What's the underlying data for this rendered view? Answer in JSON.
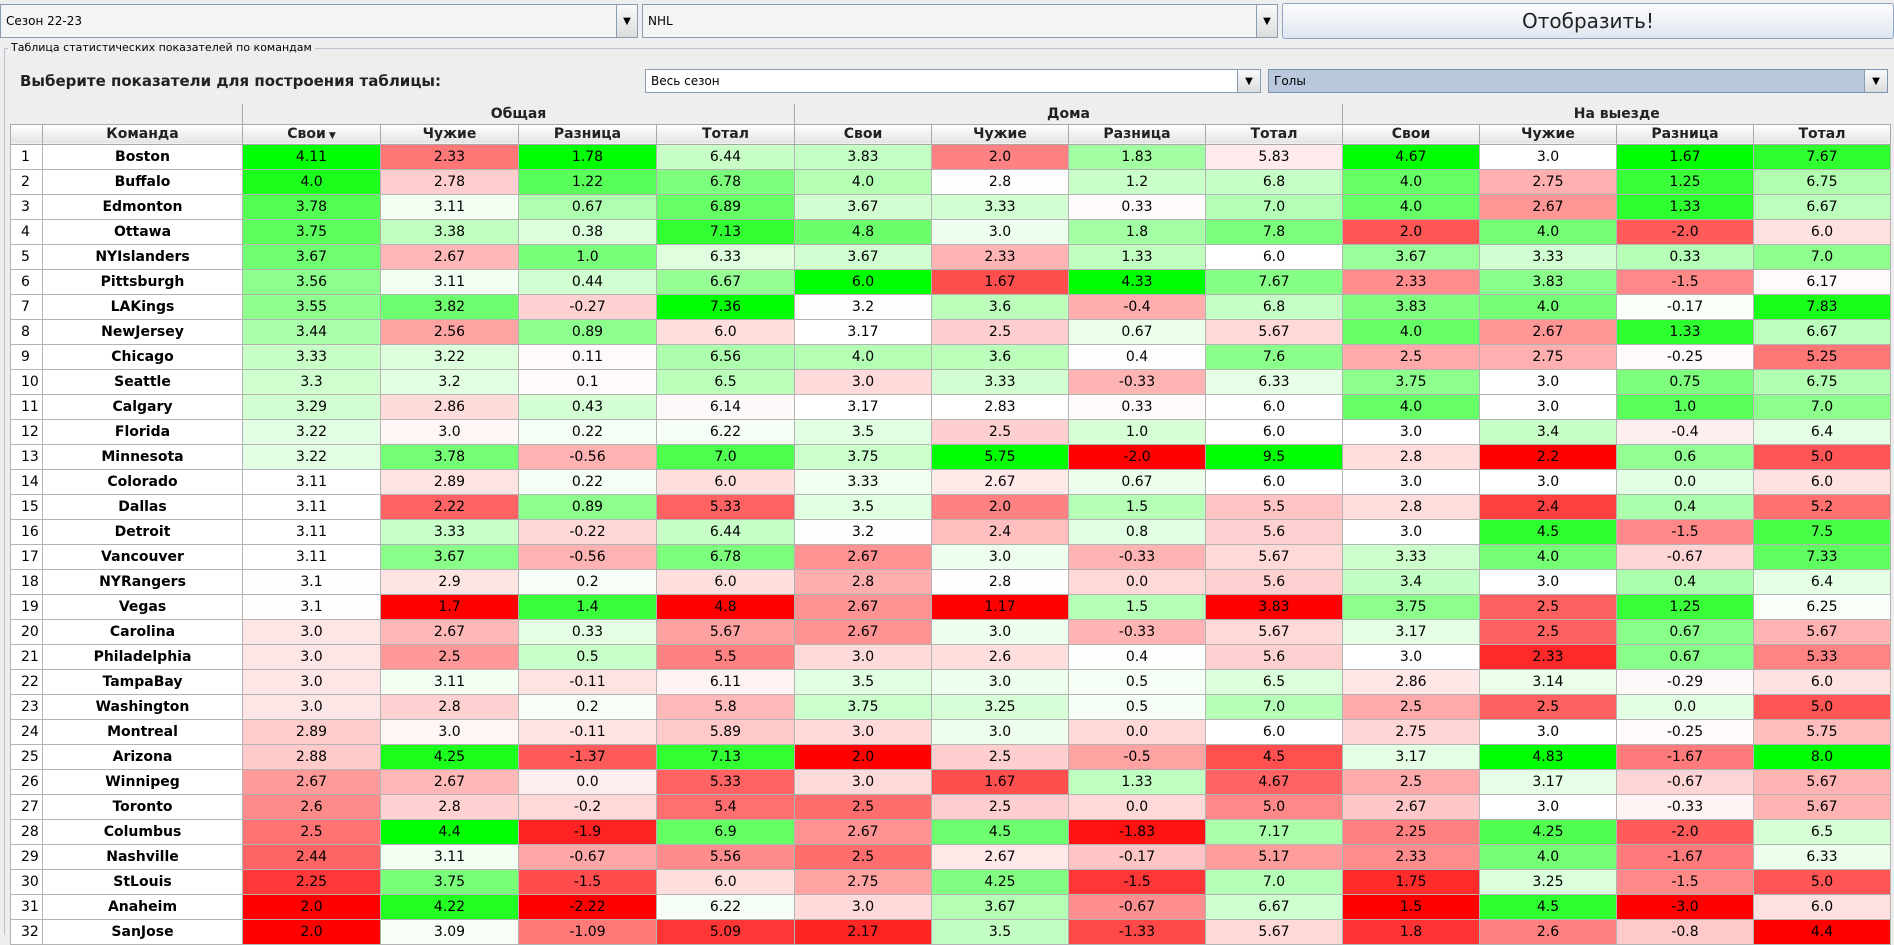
{
  "toolbar": {
    "season": "Сезон 22-23",
    "league": "NHL",
    "show_label": "Отобразить!"
  },
  "panel": {
    "title": "Таблица статистических показателей по командам",
    "choose_label": "Выберите показатели для построения таблицы:",
    "period": "Весь сезон",
    "metric": "Голы"
  },
  "groups": [
    "Общая",
    "Дома",
    "На выезде"
  ],
  "columns": [
    "Команда",
    "Свои",
    "Чужие",
    "Разница",
    "Тотал",
    "Свои",
    "Чужие",
    "Разница",
    "Тотал",
    "Свои",
    "Чужие",
    "Разница",
    "Тотал"
  ],
  "sorted_column": 1,
  "rows": [
    {
      "n": "1",
      "team": "Boston",
      "v": [
        "4.11",
        "2.33",
        "1.78",
        "6.44",
        "3.83",
        "2.0",
        "1.83",
        "5.83",
        "4.67",
        "3.0",
        "1.67",
        "7.67"
      ]
    },
    {
      "n": "2",
      "team": "Buffalo",
      "v": [
        "4.0",
        "2.78",
        "1.22",
        "6.78",
        "4.0",
        "2.8",
        "1.2",
        "6.8",
        "4.0",
        "2.75",
        "1.25",
        "6.75"
      ]
    },
    {
      "n": "3",
      "team": "Edmonton",
      "v": [
        "3.78",
        "3.11",
        "0.67",
        "6.89",
        "3.67",
        "3.33",
        "0.33",
        "7.0",
        "4.0",
        "2.67",
        "1.33",
        "6.67"
      ]
    },
    {
      "n": "4",
      "team": "Ottawa",
      "v": [
        "3.75",
        "3.38",
        "0.38",
        "7.13",
        "4.8",
        "3.0",
        "1.8",
        "7.8",
        "2.0",
        "4.0",
        "-2.0",
        "6.0"
      ]
    },
    {
      "n": "5",
      "team": "NYIslanders",
      "v": [
        "3.67",
        "2.67",
        "1.0",
        "6.33",
        "3.67",
        "2.33",
        "1.33",
        "6.0",
        "3.67",
        "3.33",
        "0.33",
        "7.0"
      ]
    },
    {
      "n": "6",
      "team": "Pittsburgh",
      "v": [
        "3.56",
        "3.11",
        "0.44",
        "6.67",
        "6.0",
        "1.67",
        "4.33",
        "7.67",
        "2.33",
        "3.83",
        "-1.5",
        "6.17"
      ]
    },
    {
      "n": "7",
      "team": "LAKings",
      "v": [
        "3.55",
        "3.82",
        "-0.27",
        "7.36",
        "3.2",
        "3.6",
        "-0.4",
        "6.8",
        "3.83",
        "4.0",
        "-0.17",
        "7.83"
      ]
    },
    {
      "n": "8",
      "team": "NewJersey",
      "v": [
        "3.44",
        "2.56",
        "0.89",
        "6.0",
        "3.17",
        "2.5",
        "0.67",
        "5.67",
        "4.0",
        "2.67",
        "1.33",
        "6.67"
      ]
    },
    {
      "n": "9",
      "team": "Chicago",
      "v": [
        "3.33",
        "3.22",
        "0.11",
        "6.56",
        "4.0",
        "3.6",
        "0.4",
        "7.6",
        "2.5",
        "2.75",
        "-0.25",
        "5.25"
      ]
    },
    {
      "n": "10",
      "team": "Seattle",
      "v": [
        "3.3",
        "3.2",
        "0.1",
        "6.5",
        "3.0",
        "3.33",
        "-0.33",
        "6.33",
        "3.75",
        "3.0",
        "0.75",
        "6.75"
      ]
    },
    {
      "n": "11",
      "team": "Calgary",
      "v": [
        "3.29",
        "2.86",
        "0.43",
        "6.14",
        "3.17",
        "2.83",
        "0.33",
        "6.0",
        "4.0",
        "3.0",
        "1.0",
        "7.0"
      ]
    },
    {
      "n": "12",
      "team": "Florida",
      "v": [
        "3.22",
        "3.0",
        "0.22",
        "6.22",
        "3.5",
        "2.5",
        "1.0",
        "6.0",
        "3.0",
        "3.4",
        "-0.4",
        "6.4"
      ]
    },
    {
      "n": "13",
      "team": "Minnesota",
      "v": [
        "3.22",
        "3.78",
        "-0.56",
        "7.0",
        "3.75",
        "5.75",
        "-2.0",
        "9.5",
        "2.8",
        "2.2",
        "0.6",
        "5.0"
      ]
    },
    {
      "n": "14",
      "team": "Colorado",
      "v": [
        "3.11",
        "2.89",
        "0.22",
        "6.0",
        "3.33",
        "2.67",
        "0.67",
        "6.0",
        "3.0",
        "3.0",
        "0.0",
        "6.0"
      ]
    },
    {
      "n": "15",
      "team": "Dallas",
      "v": [
        "3.11",
        "2.22",
        "0.89",
        "5.33",
        "3.5",
        "2.0",
        "1.5",
        "5.5",
        "2.8",
        "2.4",
        "0.4",
        "5.2"
      ]
    },
    {
      "n": "16",
      "team": "Detroit",
      "v": [
        "3.11",
        "3.33",
        "-0.22",
        "6.44",
        "3.2",
        "2.4",
        "0.8",
        "5.6",
        "3.0",
        "4.5",
        "-1.5",
        "7.5"
      ]
    },
    {
      "n": "17",
      "team": "Vancouver",
      "v": [
        "3.11",
        "3.67",
        "-0.56",
        "6.78",
        "2.67",
        "3.0",
        "-0.33",
        "5.67",
        "3.33",
        "4.0",
        "-0.67",
        "7.33"
      ]
    },
    {
      "n": "18",
      "team": "NYRangers",
      "v": [
        "3.1",
        "2.9",
        "0.2",
        "6.0",
        "2.8",
        "2.8",
        "0.0",
        "5.6",
        "3.4",
        "3.0",
        "0.4",
        "6.4"
      ]
    },
    {
      "n": "19",
      "team": "Vegas",
      "v": [
        "3.1",
        "1.7",
        "1.4",
        "4.8",
        "2.67",
        "1.17",
        "1.5",
        "3.83",
        "3.75",
        "2.5",
        "1.25",
        "6.25"
      ]
    },
    {
      "n": "20",
      "team": "Carolina",
      "v": [
        "3.0",
        "2.67",
        "0.33",
        "5.67",
        "2.67",
        "3.0",
        "-0.33",
        "5.67",
        "3.17",
        "2.5",
        "0.67",
        "5.67"
      ]
    },
    {
      "n": "21",
      "team": "Philadelphia",
      "v": [
        "3.0",
        "2.5",
        "0.5",
        "5.5",
        "3.0",
        "2.6",
        "0.4",
        "5.6",
        "3.0",
        "2.33",
        "0.67",
        "5.33"
      ]
    },
    {
      "n": "22",
      "team": "TampaBay",
      "v": [
        "3.0",
        "3.11",
        "-0.11",
        "6.11",
        "3.5",
        "3.0",
        "0.5",
        "6.5",
        "2.86",
        "3.14",
        "-0.29",
        "6.0"
      ]
    },
    {
      "n": "23",
      "team": "Washington",
      "v": [
        "3.0",
        "2.8",
        "0.2",
        "5.8",
        "3.75",
        "3.25",
        "0.5",
        "7.0",
        "2.5",
        "2.5",
        "0.0",
        "5.0"
      ]
    },
    {
      "n": "24",
      "team": "Montreal",
      "v": [
        "2.89",
        "3.0",
        "-0.11",
        "5.89",
        "3.0",
        "3.0",
        "0.0",
        "6.0",
        "2.75",
        "3.0",
        "-0.25",
        "5.75"
      ]
    },
    {
      "n": "25",
      "team": "Arizona",
      "v": [
        "2.88",
        "4.25",
        "-1.37",
        "7.13",
        "2.0",
        "2.5",
        "-0.5",
        "4.5",
        "3.17",
        "4.83",
        "-1.67",
        "8.0"
      ]
    },
    {
      "n": "26",
      "team": "Winnipeg",
      "v": [
        "2.67",
        "2.67",
        "0.0",
        "5.33",
        "3.0",
        "1.67",
        "1.33",
        "4.67",
        "2.5",
        "3.17",
        "-0.67",
        "5.67"
      ]
    },
    {
      "n": "27",
      "team": "Toronto",
      "v": [
        "2.6",
        "2.8",
        "-0.2",
        "5.4",
        "2.5",
        "2.5",
        "0.0",
        "5.0",
        "2.67",
        "3.0",
        "-0.33",
        "5.67"
      ]
    },
    {
      "n": "28",
      "team": "Columbus",
      "v": [
        "2.5",
        "4.4",
        "-1.9",
        "6.9",
        "2.67",
        "4.5",
        "-1.83",
        "7.17",
        "2.25",
        "4.25",
        "-2.0",
        "6.5"
      ]
    },
    {
      "n": "29",
      "team": "Nashville",
      "v": [
        "2.44",
        "3.11",
        "-0.67",
        "5.56",
        "2.5",
        "2.67",
        "-0.17",
        "5.17",
        "2.33",
        "4.0",
        "-1.67",
        "6.33"
      ]
    },
    {
      "n": "30",
      "team": "StLouis",
      "v": [
        "2.25",
        "3.75",
        "-1.5",
        "6.0",
        "2.75",
        "4.25",
        "-1.5",
        "7.0",
        "1.75",
        "3.25",
        "-1.5",
        "5.0"
      ]
    },
    {
      "n": "31",
      "team": "Anaheim",
      "v": [
        "2.0",
        "4.22",
        "-2.22",
        "6.22",
        "3.0",
        "3.67",
        "-0.67",
        "6.67",
        "1.5",
        "4.5",
        "-3.0",
        "6.0"
      ]
    },
    {
      "n": "32",
      "team": "SanJose",
      "v": [
        "2.0",
        "3.09",
        "-1.09",
        "5.09",
        "2.17",
        "3.5",
        "-1.33",
        "5.67",
        "1.8",
        "2.6",
        "-0.8",
        "4.4"
      ]
    }
  ]
}
